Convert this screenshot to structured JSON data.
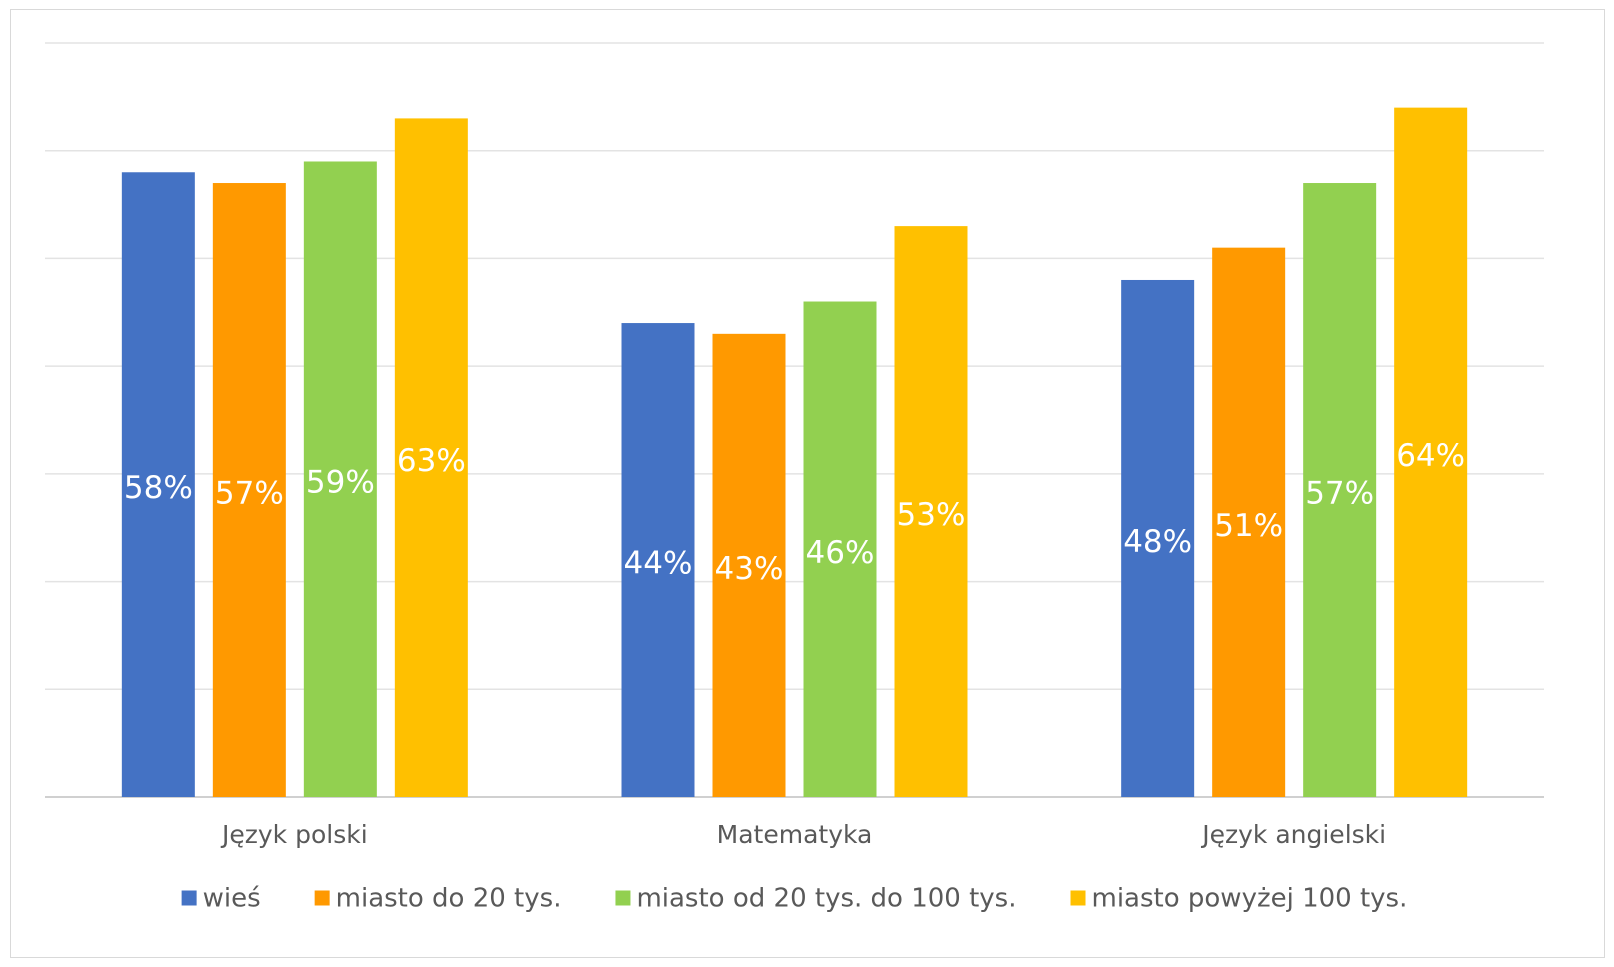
{
  "chart_data": {
    "type": "bar",
    "categories": [
      "Język polski",
      "Matematyka",
      "Język angielski"
    ],
    "series": [
      {
        "name": "wieś",
        "color": "#4472c4",
        "values": [
          58,
          44,
          48
        ]
      },
      {
        "name": "miasto do 20 tys.",
        "color": "#ff9900",
        "values": [
          57,
          43,
          51
        ]
      },
      {
        "name": "miasto od 20 tys. do 100 tys.",
        "color": "#92d050",
        "values": [
          59,
          46,
          57
        ]
      },
      {
        "name": "miasto powyżej 100 tys.",
        "color": "#ffc000",
        "values": [
          63,
          53,
          64
        ]
      }
    ],
    "value_suffix": "%",
    "title": "",
    "xlabel": "",
    "ylabel": "",
    "ylim": [
      0,
      70
    ],
    "y_gridline_step": 10,
    "y_tick_labels_shown": false,
    "grid": true,
    "legend_position": "bottom"
  }
}
